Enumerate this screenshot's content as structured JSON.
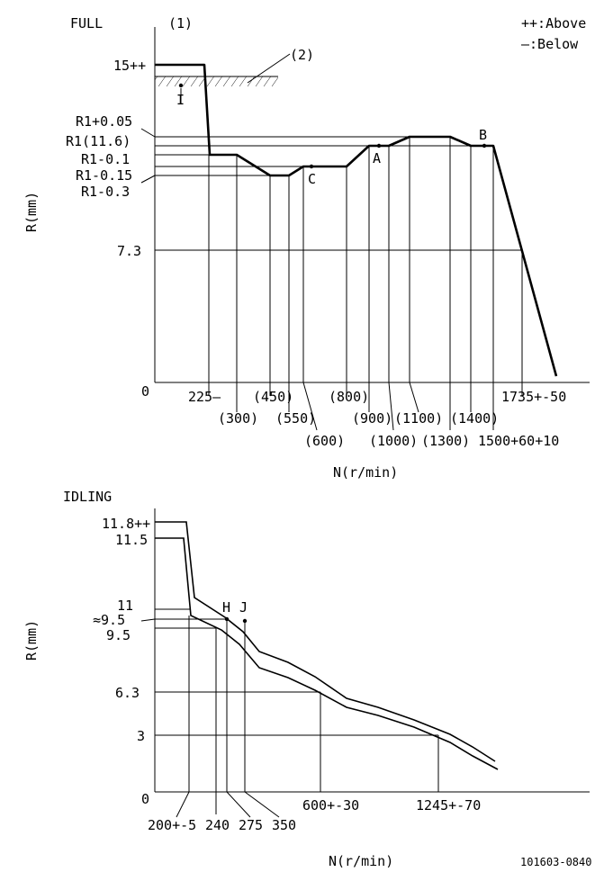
{
  "full": {
    "title": "FULL",
    "marker_1": "(1)",
    "marker_2": "(2)",
    "legend": {
      "above": "++:Above",
      "below": "—:Below"
    },
    "y_axis_label": "R(mm)",
    "x_axis_label": "N(r/min)",
    "y_labels": {
      "y15": "15++",
      "r1_plus_005": "R1+0.05",
      "r1_116": "R1(11.6)",
      "r1_minus_01": "R1-0.1",
      "r1_minus_015": "R1-0.15",
      "r1_minus_03": "R1-0.3",
      "y73": "7.3",
      "y0": "0"
    },
    "x_labels": {
      "n225": "225—",
      "n300": "(300)",
      "n450": "(450)",
      "n550": "(550)",
      "n600": "(600)",
      "n800": "(800)",
      "n900": "(900)",
      "n1000": "(1000)",
      "n1100": "(1100)",
      "n1300": "(1300)",
      "n1400": "(1400)",
      "n1500": "1500+60+10",
      "n1735": "1735+-50"
    },
    "points": {
      "I": "I",
      "C": "C",
      "A": "A",
      "B": "B"
    }
  },
  "idling": {
    "title": "IDLING",
    "y_axis_label": "R(mm)",
    "x_axis_label": "N(r/min)",
    "y_labels": {
      "y118": "11.8++",
      "y115": "11.5",
      "y11": "11",
      "y95a": "≈9.5",
      "y95b": "9.5",
      "y63": "6.3",
      "y3": "3",
      "y0": "0"
    },
    "x_labels": {
      "n200": "200+-5",
      "n240": "240",
      "n275": "275",
      "n350": "350",
      "n600": "600+-30",
      "n1245": "1245+-70"
    },
    "points": {
      "H": "H",
      "J": "J"
    }
  },
  "drawing_number": "101603-0840"
}
